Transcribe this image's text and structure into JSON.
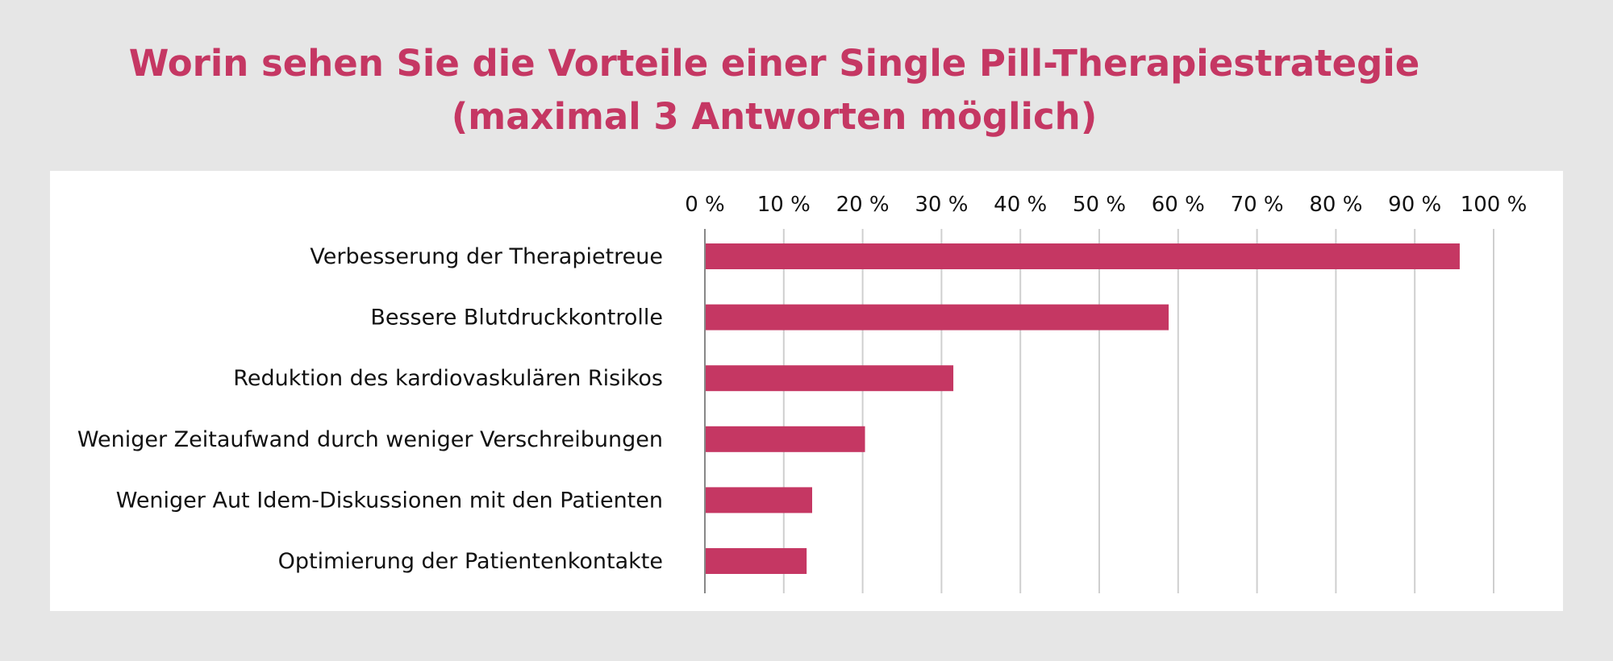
{
  "header": {
    "title_line1": "Worin sehen Sie die Vorteile einer Single Pill-Therapiestrategie",
    "title_line2": "(maximal 3 Antworten möglich)"
  },
  "colors": {
    "bar": "#c53763",
    "title": "#c53763",
    "grid": "#cfcfcf",
    "axis": "#888888",
    "background": "#e6e6e6",
    "panel": "#ffffff"
  },
  "chart_data": {
    "type": "bar",
    "orientation": "horizontal",
    "title": "Worin sehen Sie die Vorteile einer Single Pill-Therapiestrategie (maximal 3 Antworten möglich)",
    "xlabel": "",
    "ylabel": "",
    "xlim": [
      0,
      100
    ],
    "xticks": [
      0,
      10,
      20,
      30,
      40,
      50,
      60,
      70,
      80,
      90,
      100
    ],
    "xtick_labels": [
      "0 %",
      "10 %",
      "20 %",
      "30 %",
      "40 %",
      "50 %",
      "60 %",
      "70 %",
      "80 %",
      "90 %",
      "100 %"
    ],
    "axis_position": "top",
    "grid": true,
    "categories": [
      "Verbesserung der Therapietreue",
      "Bessere Blutdruckkontrolle",
      "Reduktion des kardiovaskulären Risikos",
      "Weniger Zeitaufwand durch weniger Verschreibungen",
      "Weniger Aut Idem-Diskussionen mit den Patienten",
      "Optimierung der Patientenkontakte"
    ],
    "values": [
      95.7,
      58.8,
      31.5,
      20.3,
      13.6,
      12.9
    ],
    "unit": "%"
  }
}
